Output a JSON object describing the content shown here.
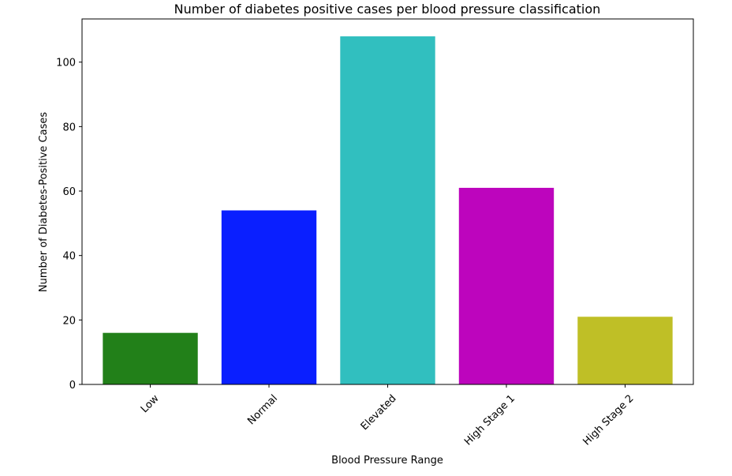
{
  "chart_data": {
    "type": "bar",
    "title": "Number of diabetes positive cases per blood pressure classification",
    "xlabel": "Blood Pressure Range",
    "ylabel": "Number of Diabetes-Positive Cases",
    "categories": [
      "Low",
      "Normal",
      "Elevated",
      "High Stage 1",
      "High Stage 2"
    ],
    "values": [
      16,
      54,
      108,
      61,
      21
    ],
    "colors": [
      "#228019",
      "#0a1fff",
      "#31bfbf",
      "#bd05bd",
      "#bfbf26"
    ],
    "ylim": [
      0,
      113.4
    ],
    "yticks": [
      0,
      20,
      40,
      60,
      80,
      100
    ],
    "xtick_rotation": 45,
    "grid": false,
    "legend": "none"
  }
}
